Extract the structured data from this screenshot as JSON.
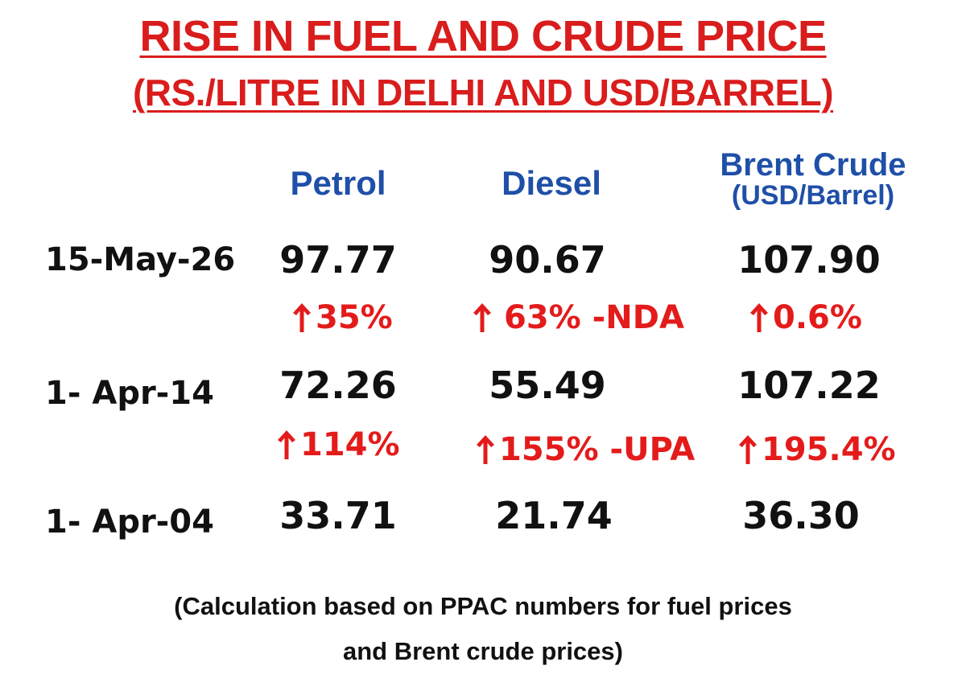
{
  "title": {
    "main": "RISE IN FUEL AND CRUDE PRICE",
    "sub": "(RS./LITRE IN DELHI AND USD/BARREL)"
  },
  "columns": {
    "petrol": "Petrol",
    "diesel": "Diesel",
    "brent": "Brent Crude",
    "brent_unit": "(USD/Barrel)"
  },
  "rows": [
    {
      "date": "15-May-26",
      "petrol": "97.77",
      "diesel": "90.67",
      "brent": "107.90"
    },
    {
      "date": "1- Apr-14",
      "petrol": "72.26",
      "diesel": "55.49",
      "brent": "107.22"
    },
    {
      "date": "1- Apr-04",
      "petrol": "33.71",
      "diesel": "21.74",
      "brent": "36.30"
    }
  ],
  "changes": [
    {
      "petrol": "35%",
      "diesel": "63% -NDA",
      "brent": "0.6%"
    },
    {
      "petrol": "114%",
      "diesel": "155% -UPA",
      "brent": "195.4%"
    }
  ],
  "note": {
    "line1": "(Calculation based on PPAC numbers for fuel prices",
    "line2": "and Brent crude prices)"
  },
  "icons": {
    "change": "up-arrow-icon"
  },
  "colors": {
    "title": "#d91d1d",
    "header": "#1f4fa8",
    "values": "#111111",
    "change": "#e41b1b"
  }
}
